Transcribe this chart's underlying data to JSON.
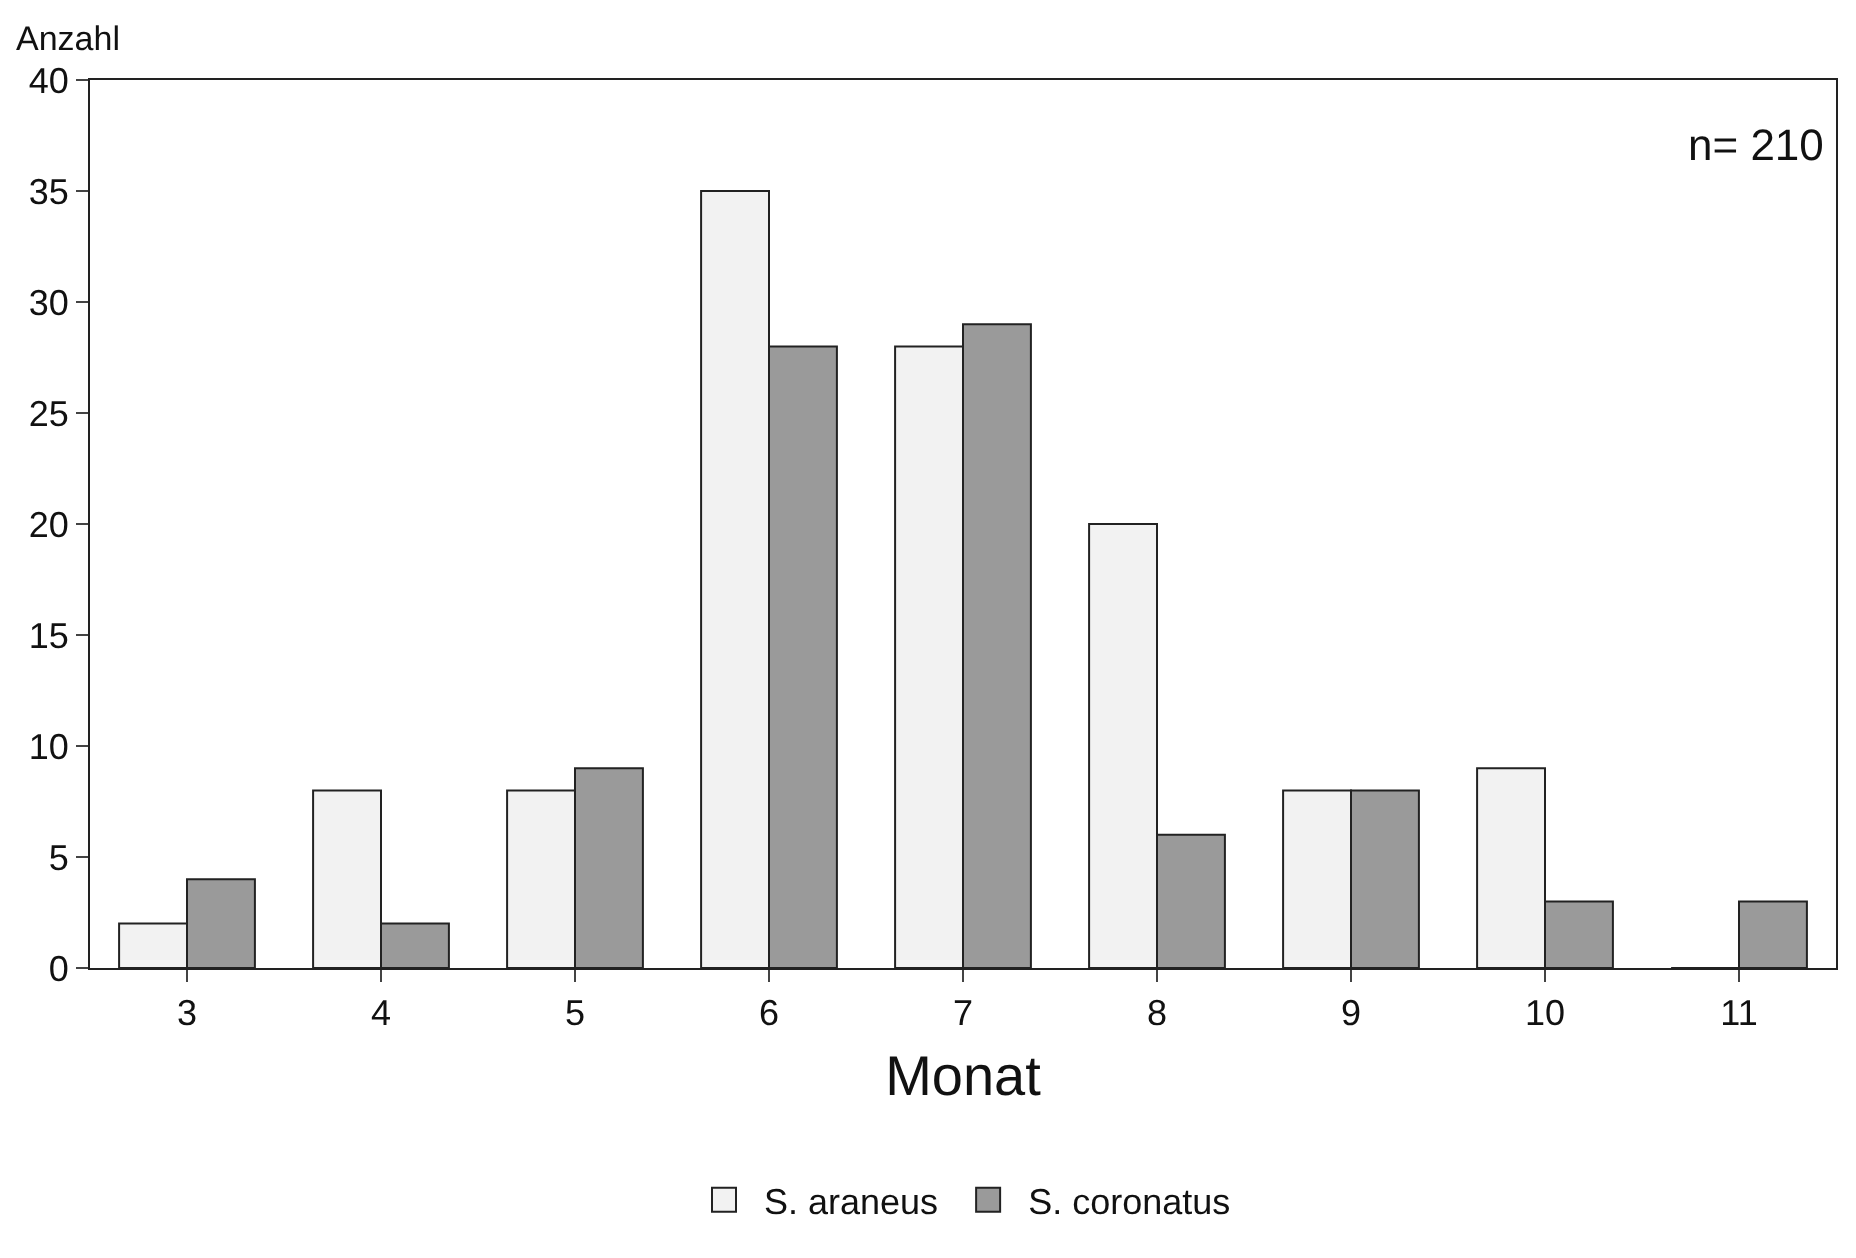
{
  "chart_data": {
    "type": "bar",
    "xlabel": "Monat",
    "ylabel": "Anzahl",
    "categories": [
      "3",
      "4",
      "5",
      "6",
      "7",
      "8",
      "9",
      "10",
      "11"
    ],
    "series": [
      {
        "name": "S. araneus",
        "color": "#f2f2f2",
        "values": [
          2,
          8,
          8,
          35,
          28,
          20,
          8,
          9,
          0
        ]
      },
      {
        "name": "S. coronatus",
        "color": "#9a9a9a",
        "values": [
          4,
          2,
          9,
          28,
          29,
          6,
          8,
          3,
          3
        ]
      }
    ],
    "ylim": [
      0,
      40
    ],
    "yticks": [
      0,
      5,
      10,
      15,
      20,
      25,
      30,
      35,
      40
    ],
    "grid": false,
    "legend": "bottom",
    "annotations": [
      "n= 210"
    ]
  }
}
